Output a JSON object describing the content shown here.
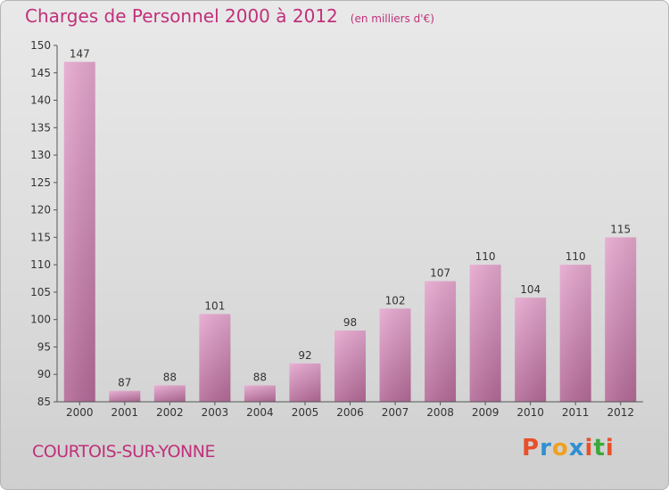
{
  "header": {
    "title": "Charges de Personnel 2000 à 2012",
    "unit": "(en milliers d'€)"
  },
  "footer": {
    "commune": "COURTOIS-SUR-YONNE",
    "brand": "Proxiti"
  },
  "colors": {
    "title": "#c0307a",
    "bar_top": "#e6a8cf",
    "bar_bottom": "#b46b98",
    "brand_letters": [
      "#e8502a",
      "#2f8fd0",
      "#f0a020",
      "#2f8fd0",
      "#e8502a",
      "#3aa83a",
      "#e8502a"
    ]
  },
  "chart_data": {
    "type": "bar",
    "categories": [
      "2000",
      "2001",
      "2002",
      "2003",
      "2004",
      "2005",
      "2006",
      "2007",
      "2008",
      "2009",
      "2010",
      "2011",
      "2012"
    ],
    "values": [
      147,
      87,
      88,
      101,
      88,
      92,
      98,
      102,
      107,
      110,
      104,
      110,
      115
    ],
    "ylim": [
      85,
      150
    ],
    "yticks": [
      85,
      90,
      95,
      100,
      105,
      110,
      115,
      120,
      125,
      130,
      135,
      140,
      145,
      150
    ],
    "grid": false
  }
}
